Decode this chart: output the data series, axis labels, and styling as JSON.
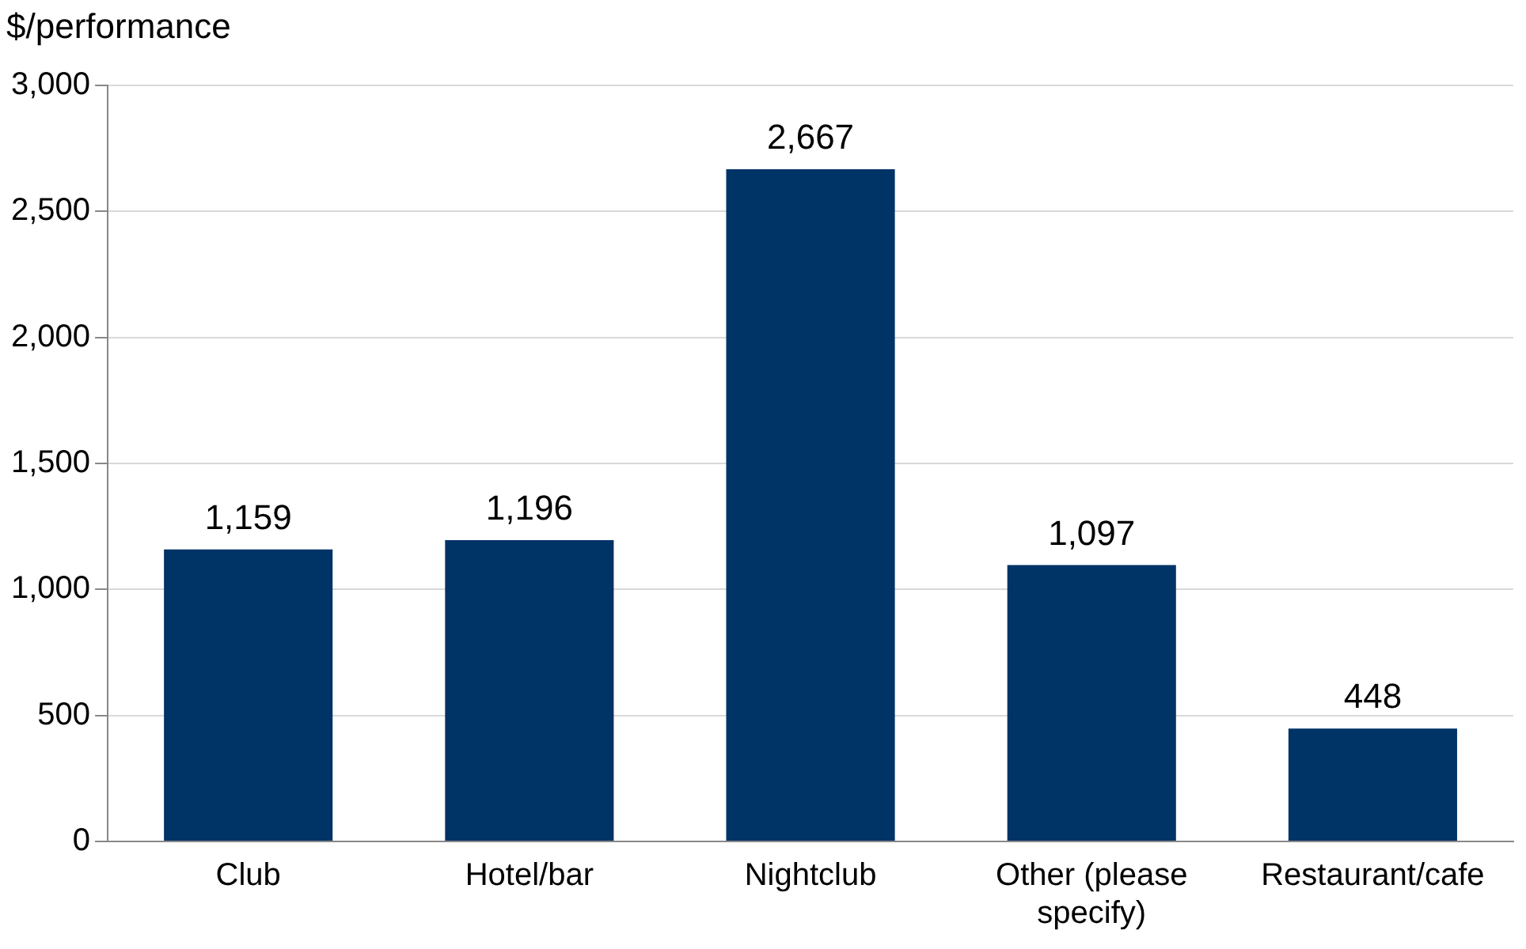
{
  "chart_data": {
    "type": "bar",
    "ylabel": "$/performance",
    "categories": [
      "Club",
      "Hotel/bar",
      "Nightclub",
      "Other (please specify)",
      "Restaurant/cafe"
    ],
    "values": [
      1159,
      1196,
      2667,
      1097,
      448
    ],
    "value_labels": [
      "1,159",
      "1,196",
      "2,667",
      "1,097",
      "448"
    ],
    "color": "#003366",
    "ylim": [
      0,
      3000
    ],
    "yticks": [
      {
        "value": 0,
        "label": "0"
      },
      {
        "value": 500,
        "label": "500"
      },
      {
        "value": 1000,
        "label": "1,000"
      },
      {
        "value": 1500,
        "label": "1,500"
      },
      {
        "value": 2000,
        "label": "2,000"
      },
      {
        "value": 2500,
        "label": "2,500"
      },
      {
        "value": 3000,
        "label": "3,000"
      }
    ],
    "grid": "y",
    "legend": false
  }
}
